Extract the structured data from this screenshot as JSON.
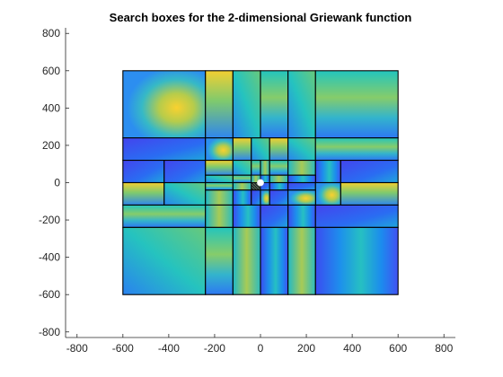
{
  "chart_data": {
    "type": "heatmap",
    "title": "Search boxes for the 2-dimensional Griewank function",
    "xlabel": "",
    "ylabel": "",
    "xlim": [
      -850,
      850
    ],
    "ylim": [
      -830,
      830
    ],
    "xticks": [
      -800,
      -600,
      -400,
      -200,
      0,
      200,
      400,
      600,
      800
    ],
    "yticks": [
      -800,
      -600,
      -400,
      -200,
      0,
      200,
      400,
      600,
      800
    ],
    "grid": false,
    "domain": {
      "x": [
        -600,
        600
      ],
      "y": [
        -600,
        600
      ]
    },
    "x_breaks": [
      -600,
      -240,
      -120,
      -40,
      0,
      40,
      120,
      240,
      350,
      600
    ],
    "y_breaks": [
      -600,
      -240,
      -120,
      -40,
      0,
      40,
      120,
      240,
      350,
      600
    ],
    "boxes": [
      [
        -600,
        -240,
        240,
        600
      ],
      [
        -240,
        -120,
        240,
        600
      ],
      [
        -120,
        0,
        240,
        600
      ],
      [
        0,
        120,
        240,
        600
      ],
      [
        120,
        240,
        240,
        600
      ],
      [
        240,
        600,
        240,
        600
      ],
      [
        -600,
        -240,
        120,
        240
      ],
      [
        -240,
        -120,
        120,
        240
      ],
      [
        -120,
        -40,
        120,
        240
      ],
      [
        -40,
        40,
        120,
        240
      ],
      [
        40,
        120,
        120,
        240
      ],
      [
        120,
        240,
        120,
        240
      ],
      [
        240,
        600,
        120,
        240
      ],
      [
        -600,
        -420,
        0,
        120
      ],
      [
        -420,
        -240,
        0,
        120
      ],
      [
        -240,
        -120,
        40,
        120
      ],
      [
        -120,
        -40,
        40,
        120
      ],
      [
        -40,
        0,
        40,
        120
      ],
      [
        0,
        40,
        40,
        120
      ],
      [
        40,
        120,
        40,
        120
      ],
      [
        120,
        240,
        40,
        120
      ],
      [
        240,
        350,
        0,
        120
      ],
      [
        350,
        600,
        0,
        120
      ],
      [
        -240,
        -120,
        0,
        40
      ],
      [
        -120,
        -40,
        0,
        40
      ],
      [
        -40,
        0,
        0,
        40
      ],
      [
        0,
        40,
        0,
        40
      ],
      [
        40,
        120,
        0,
        40
      ],
      [
        120,
        240,
        0,
        40
      ],
      [
        -600,
        -420,
        -120,
        0
      ],
      [
        -420,
        -240,
        -120,
        0
      ],
      [
        -240,
        -120,
        -40,
        0
      ],
      [
        -120,
        -40,
        -40,
        0
      ],
      [
        -40,
        0,
        -40,
        0
      ],
      [
        0,
        40,
        -40,
        0
      ],
      [
        40,
        120,
        -40,
        0
      ],
      [
        120,
        240,
        -40,
        0
      ],
      [
        240,
        350,
        -120,
        0
      ],
      [
        350,
        600,
        -120,
        0
      ],
      [
        -240,
        -120,
        -120,
        -40
      ],
      [
        -120,
        -40,
        -120,
        -40
      ],
      [
        -40,
        0,
        -120,
        -40
      ],
      [
        0,
        40,
        -120,
        -40
      ],
      [
        40,
        120,
        -120,
        -40
      ],
      [
        120,
        240,
        -120,
        -40
      ],
      [
        -600,
        -240,
        -240,
        -120
      ],
      [
        -240,
        -120,
        -240,
        -120
      ],
      [
        -120,
        0,
        -240,
        -120
      ],
      [
        0,
        120,
        -240,
        -120
      ],
      [
        120,
        240,
        -240,
        -120
      ],
      [
        240,
        600,
        -240,
        -120
      ],
      [
        -600,
        -240,
        -600,
        -240
      ],
      [
        -240,
        -120,
        -600,
        -240
      ],
      [
        -120,
        0,
        -600,
        -240
      ],
      [
        0,
        120,
        -600,
        -240
      ],
      [
        120,
        240,
        -600,
        -240
      ],
      [
        240,
        600,
        -600,
        -240
      ]
    ],
    "minimum_marker": {
      "x": 0,
      "y": 0
    }
  }
}
